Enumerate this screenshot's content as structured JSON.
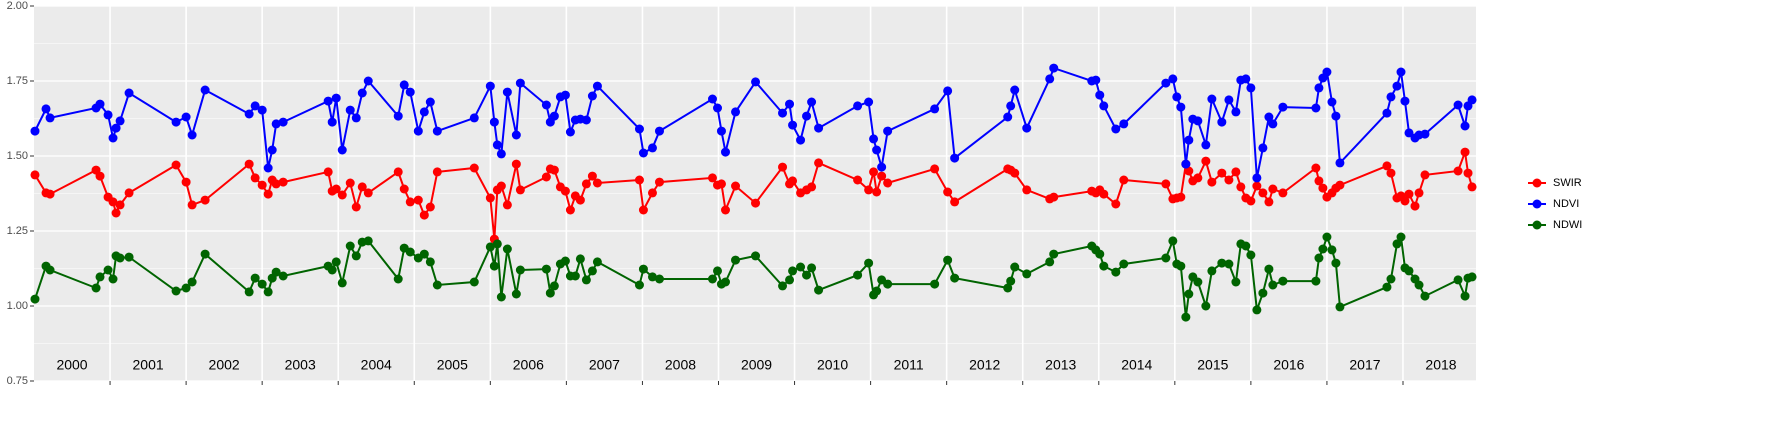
{
  "chart_data": {
    "type": "line",
    "x": [
      2000.013,
      2000.158,
      2000.211,
      2000.816,
      2000.868,
      2000.974,
      2001.039,
      2001.079,
      2001.132,
      2001.25,
      2001.868,
      2002.0,
      2002.079,
      2002.25,
      2002.829,
      2002.908,
      2003.0,
      2003.079,
      2003.132,
      2003.184,
      2003.276,
      2003.868,
      2003.921,
      2003.974,
      2004.053,
      2004.158,
      2004.237,
      2004.316,
      2004.395,
      2004.789,
      2004.868,
      2004.947,
      2005.053,
      2005.132,
      2005.211,
      2005.303,
      2005.789,
      2006.0,
      2006.053,
      2006.092,
      2006.145,
      2006.224,
      2006.342,
      2006.395,
      2006.737,
      2006.789,
      2006.842,
      2006.921,
      2006.987,
      2007.053,
      2007.118,
      2007.184,
      2007.263,
      2007.342,
      2007.408,
      2007.961,
      2008.013,
      2008.132,
      2008.224,
      2008.921,
      2008.987,
      2009.039,
      2009.092,
      2009.224,
      2009.487,
      2009.842,
      2009.934,
      2009.974,
      2010.079,
      2010.158,
      2010.224,
      2010.316,
      2010.829,
      2010.974,
      2011.039,
      2011.079,
      2011.145,
      2011.224,
      2011.842,
      2012.013,
      2012.105,
      2012.803,
      2012.842,
      2012.895,
      2013.053,
      2013.355,
      2013.408,
      2013.908,
      2013.961,
      2014.013,
      2014.066,
      2014.224,
      2014.329,
      2014.882,
      2014.974,
      2015.026,
      2015.079,
      2015.145,
      2015.184,
      2015.237,
      2015.303,
      2015.408,
      2015.487,
      2015.618,
      2015.711,
      2015.803,
      2015.868,
      2015.934,
      2016.0,
      2016.079,
      2016.158,
      2016.237,
      2016.289,
      2016.421,
      2016.855,
      2016.895,
      2016.947,
      2017.0,
      2017.066,
      2017.118,
      2017.171,
      2017.789,
      2017.842,
      2017.921,
      2017.974,
      2018.026,
      2018.079,
      2018.158,
      2018.211,
      2018.289,
      2018.724,
      2018.816,
      2018.855,
      2018.908
    ],
    "series": [
      {
        "name": "SWIR",
        "color": "#ff0000",
        "values": [
          1.437,
          1.377,
          1.373,
          1.453,
          1.433,
          1.363,
          1.347,
          1.31,
          1.337,
          1.377,
          1.47,
          1.413,
          1.337,
          1.353,
          1.473,
          1.427,
          1.403,
          1.373,
          1.42,
          1.407,
          1.413,
          1.447,
          1.383,
          1.39,
          1.37,
          1.41,
          1.33,
          1.397,
          1.377,
          1.447,
          1.39,
          1.347,
          1.353,
          1.303,
          1.33,
          1.447,
          1.46,
          1.36,
          1.223,
          1.387,
          1.4,
          1.337,
          1.473,
          1.387,
          1.43,
          1.457,
          1.453,
          1.397,
          1.383,
          1.32,
          1.367,
          1.353,
          1.407,
          1.433,
          1.41,
          1.42,
          1.32,
          1.377,
          1.413,
          1.427,
          1.403,
          1.407,
          1.32,
          1.4,
          1.343,
          1.463,
          1.407,
          1.417,
          1.377,
          1.387,
          1.397,
          1.477,
          1.42,
          1.387,
          1.447,
          1.38,
          1.433,
          1.41,
          1.457,
          1.38,
          1.347,
          1.457,
          1.453,
          1.443,
          1.387,
          1.357,
          1.363,
          1.383,
          1.377,
          1.387,
          1.373,
          1.34,
          1.42,
          1.407,
          1.357,
          1.36,
          1.363,
          1.473,
          1.45,
          1.417,
          1.427,
          1.483,
          1.413,
          1.443,
          1.42,
          1.447,
          1.397,
          1.36,
          1.35,
          1.4,
          1.377,
          1.347,
          1.39,
          1.377,
          1.46,
          1.417,
          1.393,
          1.363,
          1.377,
          1.393,
          1.403,
          1.467,
          1.443,
          1.36,
          1.367,
          1.35,
          1.373,
          1.333,
          1.377,
          1.437,
          1.45,
          1.513,
          1.443,
          1.397
        ]
      },
      {
        "name": "NDVI",
        "color": "#0000ff",
        "values": [
          1.583,
          1.657,
          1.627,
          1.66,
          1.673,
          1.637,
          1.56,
          1.593,
          1.617,
          1.71,
          1.613,
          1.63,
          1.57,
          1.72,
          1.64,
          1.667,
          1.653,
          1.46,
          1.52,
          1.607,
          1.613,
          1.683,
          1.613,
          1.693,
          1.52,
          1.653,
          1.627,
          1.71,
          1.75,
          1.633,
          1.737,
          1.713,
          1.583,
          1.647,
          1.68,
          1.583,
          1.627,
          1.733,
          1.613,
          1.537,
          1.507,
          1.713,
          1.57,
          1.743,
          1.67,
          1.613,
          1.633,
          1.697,
          1.703,
          1.58,
          1.62,
          1.623,
          1.62,
          1.7,
          1.733,
          1.59,
          1.51,
          1.527,
          1.583,
          1.69,
          1.66,
          1.583,
          1.513,
          1.647,
          1.747,
          1.643,
          1.673,
          1.603,
          1.553,
          1.633,
          1.68,
          1.593,
          1.667,
          1.68,
          1.557,
          1.52,
          1.463,
          1.583,
          1.657,
          1.717,
          1.493,
          1.63,
          1.667,
          1.72,
          1.593,
          1.757,
          1.793,
          1.75,
          1.753,
          1.703,
          1.667,
          1.59,
          1.607,
          1.743,
          1.757,
          1.697,
          1.663,
          1.473,
          1.553,
          1.623,
          1.617,
          1.537,
          1.69,
          1.613,
          1.687,
          1.647,
          1.753,
          1.757,
          1.727,
          1.427,
          1.527,
          1.63,
          1.607,
          1.663,
          1.66,
          1.727,
          1.76,
          1.78,
          1.68,
          1.633,
          1.477,
          1.643,
          1.697,
          1.733,
          1.78,
          1.683,
          1.577,
          1.56,
          1.57,
          1.573,
          1.67,
          1.6,
          1.667,
          1.687
        ]
      },
      {
        "name": "NDWI",
        "color": "#006400",
        "values": [
          1.023,
          1.133,
          1.12,
          1.06,
          1.097,
          1.12,
          1.09,
          1.167,
          1.16,
          1.163,
          1.05,
          1.06,
          1.08,
          1.173,
          1.047,
          1.093,
          1.073,
          1.047,
          1.093,
          1.113,
          1.1,
          1.133,
          1.12,
          1.147,
          1.077,
          1.2,
          1.167,
          1.213,
          1.217,
          1.09,
          1.193,
          1.18,
          1.16,
          1.173,
          1.147,
          1.07,
          1.08,
          1.197,
          1.133,
          1.207,
          1.03,
          1.19,
          1.04,
          1.12,
          1.123,
          1.043,
          1.067,
          1.14,
          1.15,
          1.1,
          1.1,
          1.157,
          1.087,
          1.117,
          1.147,
          1.07,
          1.123,
          1.097,
          1.09,
          1.09,
          1.117,
          1.073,
          1.08,
          1.153,
          1.167,
          1.067,
          1.087,
          1.117,
          1.13,
          1.103,
          1.127,
          1.053,
          1.103,
          1.143,
          1.037,
          1.05,
          1.087,
          1.073,
          1.073,
          1.153,
          1.093,
          1.06,
          1.083,
          1.13,
          1.107,
          1.147,
          1.173,
          1.2,
          1.187,
          1.173,
          1.133,
          1.113,
          1.14,
          1.16,
          1.217,
          1.14,
          1.133,
          0.963,
          1.04,
          1.097,
          1.08,
          1.0,
          1.117,
          1.143,
          1.14,
          1.08,
          1.207,
          1.2,
          1.17,
          0.987,
          1.043,
          1.123,
          1.07,
          1.083,
          1.083,
          1.16,
          1.19,
          1.23,
          1.187,
          1.143,
          0.997,
          1.063,
          1.09,
          1.207,
          1.23,
          1.127,
          1.117,
          1.09,
          1.07,
          1.033,
          1.087,
          1.033,
          1.093,
          1.097
        ]
      }
    ],
    "xlim": [
      2000,
      2018.96
    ],
    "xticks": [
      2001,
      2002,
      2003,
      2004,
      2005,
      2006,
      2007,
      2008,
      2009,
      2010,
      2011,
      2012,
      2013,
      2014,
      2015,
      2016,
      2017,
      2018
    ],
    "year_labels": [
      2000,
      2001,
      2002,
      2003,
      2004,
      2005,
      2006,
      2007,
      2008,
      2009,
      2010,
      2011,
      2012,
      2013,
      2014,
      2015,
      2016,
      2017,
      2018
    ],
    "ylim": [
      0.75,
      2
    ],
    "yticks": [
      {
        "value": 0.75,
        "label": "0.75"
      },
      {
        "value": 1,
        "label": "1.00"
      },
      {
        "value": 1.25,
        "label": "1.25"
      },
      {
        "value": 1.5,
        "label": "1.50"
      },
      {
        "value": 1.75,
        "label": "1.75"
      },
      {
        "value": 2,
        "label": "2.00"
      }
    ],
    "grid": true,
    "legend": "right"
  }
}
